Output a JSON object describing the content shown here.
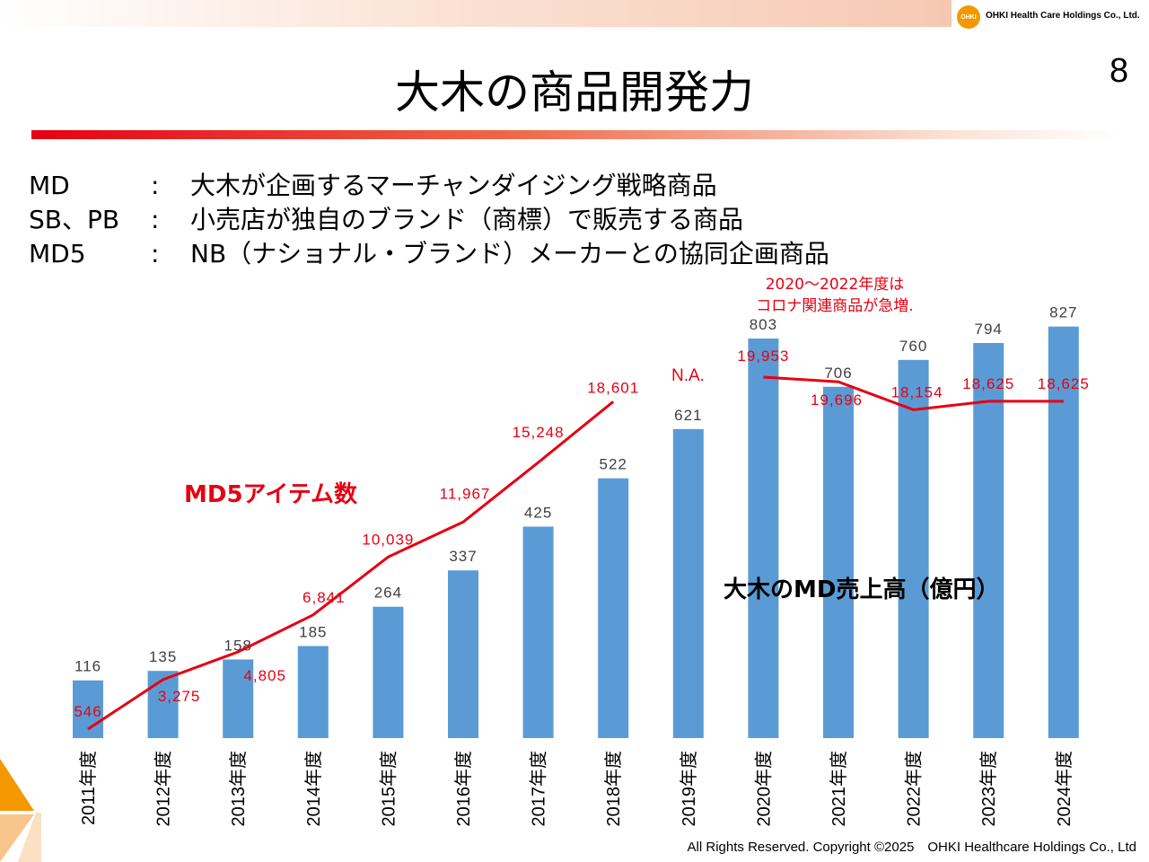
{
  "header": {
    "company_logo_text": "OHKI Health Care Holdings Co., Ltd.",
    "logo_mark": "OHKI",
    "page_number": "8"
  },
  "title": "大木の商品開発力",
  "definitions": [
    {
      "term": "MD",
      "colon": ":",
      "desc": "大木が企画するマーチャンダイジング戦略商品"
    },
    {
      "term": "SB、PB",
      "colon": ":",
      "desc": "小売店が独自のブランド（商標）で販売する商品"
    },
    {
      "term": "MD5",
      "colon": ":",
      "desc": "NB（ナショナル・ブランド）メーカーとの協同企画商品"
    }
  ],
  "annotations": {
    "corona_note_line1": "2020～2022年度は",
    "corona_note_line2": "コロナ関連商品が急増.",
    "md5_series_label": "MD5アイテム数",
    "sales_series_label": "大木のMD売上高（億円）",
    "na_label": "N.A."
  },
  "footer": "All Rights Reserved. Copyright ©2025　OHKI Healthcare Holdings Co., Ltd",
  "colors": {
    "bar": "#5b9bd5",
    "line": "#e60012",
    "accent": "#e60012",
    "deco_orange": "#f39800"
  },
  "chart_data": {
    "type": "bar",
    "categories": [
      "2011年度",
      "2012年度",
      "2013年度",
      "2014年度",
      "2015年度",
      "2016年度",
      "2017年度",
      "2018年度",
      "2019年度",
      "2020年度",
      "2021年度",
      "2022年度",
      "2023年度",
      "2024年度"
    ],
    "series": [
      {
        "name": "大木のMD売上高（億円）",
        "type": "bar",
        "values": [
          116,
          135,
          158,
          185,
          264,
          337,
          425,
          522,
          621,
          803,
          706,
          760,
          794,
          827
        ],
        "labels": [
          "116",
          "135",
          "158",
          "185",
          "264",
          "337",
          "425",
          "522",
          "621",
          "803",
          "706",
          "760",
          "794",
          "827"
        ]
      },
      {
        "name": "MD5アイテム数",
        "type": "line",
        "values": [
          546,
          3275,
          4805,
          6841,
          10039,
          11967,
          15248,
          18601,
          null,
          19953,
          19696,
          18154,
          18625,
          18625
        ],
        "labels": [
          "546",
          "3,275",
          "4,805",
          "6,841",
          "10,039",
          "11,967",
          "15,248",
          "18,601",
          null,
          "19,953",
          "19,696",
          "18,154",
          "18,625",
          "18,625"
        ]
      }
    ],
    "bar_axis_range": [
      0,
      900
    ],
    "line_axis_range": [
      0,
      27000
    ],
    "grid": false
  }
}
